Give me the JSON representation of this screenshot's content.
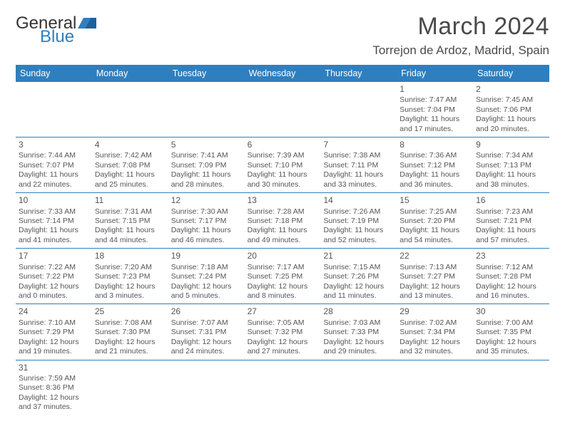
{
  "brand": {
    "word1": "General",
    "word2": "Blue",
    "word1_color": "#333333",
    "word2_color": "#2f7fbf"
  },
  "title": "March 2024",
  "location": "Torrejon de Ardoz, Madrid, Spain",
  "style": {
    "header_bg": "#2f7fbf",
    "header_text": "#ffffff",
    "divider": "#2f7fbf",
    "body_text": "#555555",
    "title_fontsize": 34,
    "location_fontsize": 17,
    "head_fontsize": 12.5,
    "cell_fontsize": 10.5
  },
  "day_labels": [
    "Sunday",
    "Monday",
    "Tuesday",
    "Wednesday",
    "Thursday",
    "Friday",
    "Saturday"
  ],
  "weeks": [
    [
      null,
      null,
      null,
      null,
      null,
      {
        "n": "1",
        "sr": "Sunrise: 7:47 AM",
        "ss": "Sunset: 7:04 PM",
        "d1": "Daylight: 11 hours",
        "d2": "and 17 minutes."
      },
      {
        "n": "2",
        "sr": "Sunrise: 7:45 AM",
        "ss": "Sunset: 7:06 PM",
        "d1": "Daylight: 11 hours",
        "d2": "and 20 minutes."
      }
    ],
    [
      {
        "n": "3",
        "sr": "Sunrise: 7:44 AM",
        "ss": "Sunset: 7:07 PM",
        "d1": "Daylight: 11 hours",
        "d2": "and 22 minutes."
      },
      {
        "n": "4",
        "sr": "Sunrise: 7:42 AM",
        "ss": "Sunset: 7:08 PM",
        "d1": "Daylight: 11 hours",
        "d2": "and 25 minutes."
      },
      {
        "n": "5",
        "sr": "Sunrise: 7:41 AM",
        "ss": "Sunset: 7:09 PM",
        "d1": "Daylight: 11 hours",
        "d2": "and 28 minutes."
      },
      {
        "n": "6",
        "sr": "Sunrise: 7:39 AM",
        "ss": "Sunset: 7:10 PM",
        "d1": "Daylight: 11 hours",
        "d2": "and 30 minutes."
      },
      {
        "n": "7",
        "sr": "Sunrise: 7:38 AM",
        "ss": "Sunset: 7:11 PM",
        "d1": "Daylight: 11 hours",
        "d2": "and 33 minutes."
      },
      {
        "n": "8",
        "sr": "Sunrise: 7:36 AM",
        "ss": "Sunset: 7:12 PM",
        "d1": "Daylight: 11 hours",
        "d2": "and 36 minutes."
      },
      {
        "n": "9",
        "sr": "Sunrise: 7:34 AM",
        "ss": "Sunset: 7:13 PM",
        "d1": "Daylight: 11 hours",
        "d2": "and 38 minutes."
      }
    ],
    [
      {
        "n": "10",
        "sr": "Sunrise: 7:33 AM",
        "ss": "Sunset: 7:14 PM",
        "d1": "Daylight: 11 hours",
        "d2": "and 41 minutes."
      },
      {
        "n": "11",
        "sr": "Sunrise: 7:31 AM",
        "ss": "Sunset: 7:15 PM",
        "d1": "Daylight: 11 hours",
        "d2": "and 44 minutes."
      },
      {
        "n": "12",
        "sr": "Sunrise: 7:30 AM",
        "ss": "Sunset: 7:17 PM",
        "d1": "Daylight: 11 hours",
        "d2": "and 46 minutes."
      },
      {
        "n": "13",
        "sr": "Sunrise: 7:28 AM",
        "ss": "Sunset: 7:18 PM",
        "d1": "Daylight: 11 hours",
        "d2": "and 49 minutes."
      },
      {
        "n": "14",
        "sr": "Sunrise: 7:26 AM",
        "ss": "Sunset: 7:19 PM",
        "d1": "Daylight: 11 hours",
        "d2": "and 52 minutes."
      },
      {
        "n": "15",
        "sr": "Sunrise: 7:25 AM",
        "ss": "Sunset: 7:20 PM",
        "d1": "Daylight: 11 hours",
        "d2": "and 54 minutes."
      },
      {
        "n": "16",
        "sr": "Sunrise: 7:23 AM",
        "ss": "Sunset: 7:21 PM",
        "d1": "Daylight: 11 hours",
        "d2": "and 57 minutes."
      }
    ],
    [
      {
        "n": "17",
        "sr": "Sunrise: 7:22 AM",
        "ss": "Sunset: 7:22 PM",
        "d1": "Daylight: 12 hours",
        "d2": "and 0 minutes."
      },
      {
        "n": "18",
        "sr": "Sunrise: 7:20 AM",
        "ss": "Sunset: 7:23 PM",
        "d1": "Daylight: 12 hours",
        "d2": "and 3 minutes."
      },
      {
        "n": "19",
        "sr": "Sunrise: 7:18 AM",
        "ss": "Sunset: 7:24 PM",
        "d1": "Daylight: 12 hours",
        "d2": "and 5 minutes."
      },
      {
        "n": "20",
        "sr": "Sunrise: 7:17 AM",
        "ss": "Sunset: 7:25 PM",
        "d1": "Daylight: 12 hours",
        "d2": "and 8 minutes."
      },
      {
        "n": "21",
        "sr": "Sunrise: 7:15 AM",
        "ss": "Sunset: 7:26 PM",
        "d1": "Daylight: 12 hours",
        "d2": "and 11 minutes."
      },
      {
        "n": "22",
        "sr": "Sunrise: 7:13 AM",
        "ss": "Sunset: 7:27 PM",
        "d1": "Daylight: 12 hours",
        "d2": "and 13 minutes."
      },
      {
        "n": "23",
        "sr": "Sunrise: 7:12 AM",
        "ss": "Sunset: 7:28 PM",
        "d1": "Daylight: 12 hours",
        "d2": "and 16 minutes."
      }
    ],
    [
      {
        "n": "24",
        "sr": "Sunrise: 7:10 AM",
        "ss": "Sunset: 7:29 PM",
        "d1": "Daylight: 12 hours",
        "d2": "and 19 minutes."
      },
      {
        "n": "25",
        "sr": "Sunrise: 7:08 AM",
        "ss": "Sunset: 7:30 PM",
        "d1": "Daylight: 12 hours",
        "d2": "and 21 minutes."
      },
      {
        "n": "26",
        "sr": "Sunrise: 7:07 AM",
        "ss": "Sunset: 7:31 PM",
        "d1": "Daylight: 12 hours",
        "d2": "and 24 minutes."
      },
      {
        "n": "27",
        "sr": "Sunrise: 7:05 AM",
        "ss": "Sunset: 7:32 PM",
        "d1": "Daylight: 12 hours",
        "d2": "and 27 minutes."
      },
      {
        "n": "28",
        "sr": "Sunrise: 7:03 AM",
        "ss": "Sunset: 7:33 PM",
        "d1": "Daylight: 12 hours",
        "d2": "and 29 minutes."
      },
      {
        "n": "29",
        "sr": "Sunrise: 7:02 AM",
        "ss": "Sunset: 7:34 PM",
        "d1": "Daylight: 12 hours",
        "d2": "and 32 minutes."
      },
      {
        "n": "30",
        "sr": "Sunrise: 7:00 AM",
        "ss": "Sunset: 7:35 PM",
        "d1": "Daylight: 12 hours",
        "d2": "and 35 minutes."
      }
    ],
    [
      {
        "n": "31",
        "sr": "Sunrise: 7:59 AM",
        "ss": "Sunset: 8:36 PM",
        "d1": "Daylight: 12 hours",
        "d2": "and 37 minutes."
      },
      null,
      null,
      null,
      null,
      null,
      null
    ]
  ]
}
